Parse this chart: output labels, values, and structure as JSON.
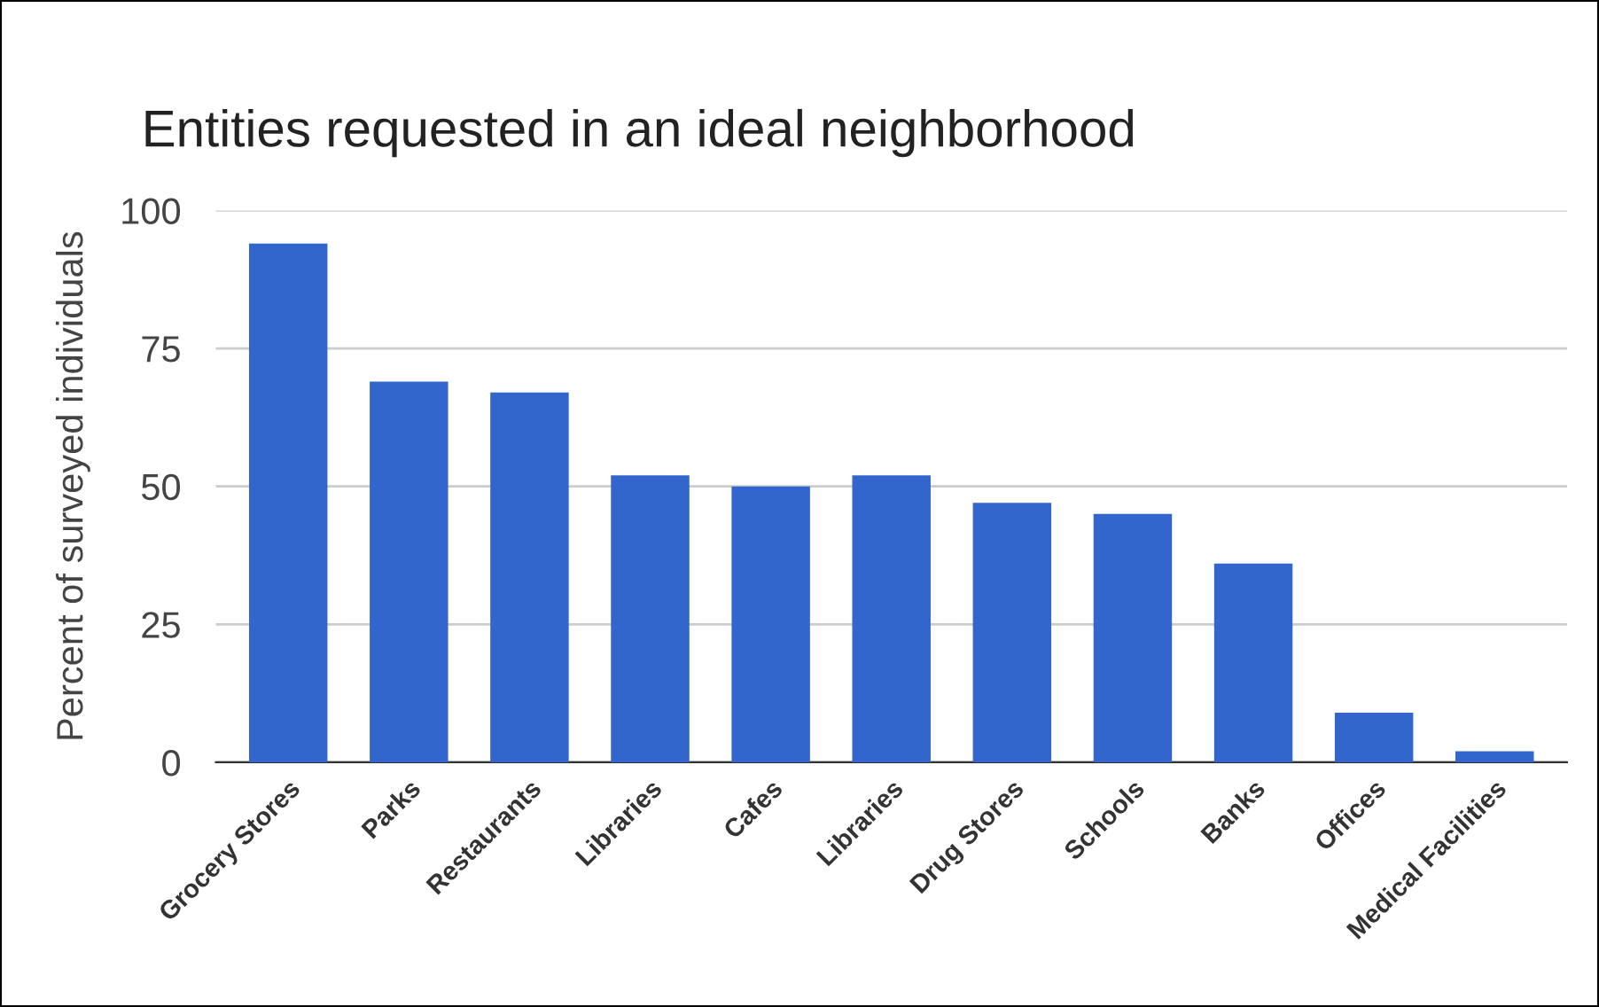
{
  "chart_data": {
    "type": "bar",
    "title": "Entities requested in an ideal neighborhood",
    "ylabel": "Percent of surveyed individuals",
    "categories": [
      "Grocery Stores",
      "Parks",
      "Restaurants",
      "Libraries",
      "Cafes",
      "Libraries",
      "Drug Stores",
      "Schools",
      "Banks",
      "Offices",
      "Medical Facilities"
    ],
    "values": [
      94,
      69,
      67,
      52,
      50,
      52,
      47,
      45,
      36,
      9,
      2
    ],
    "color": "#3366cc",
    "ylim": [
      0,
      100
    ],
    "yticks": [
      0,
      25,
      50,
      75,
      100
    ],
    "grid": "y",
    "legend": false
  }
}
